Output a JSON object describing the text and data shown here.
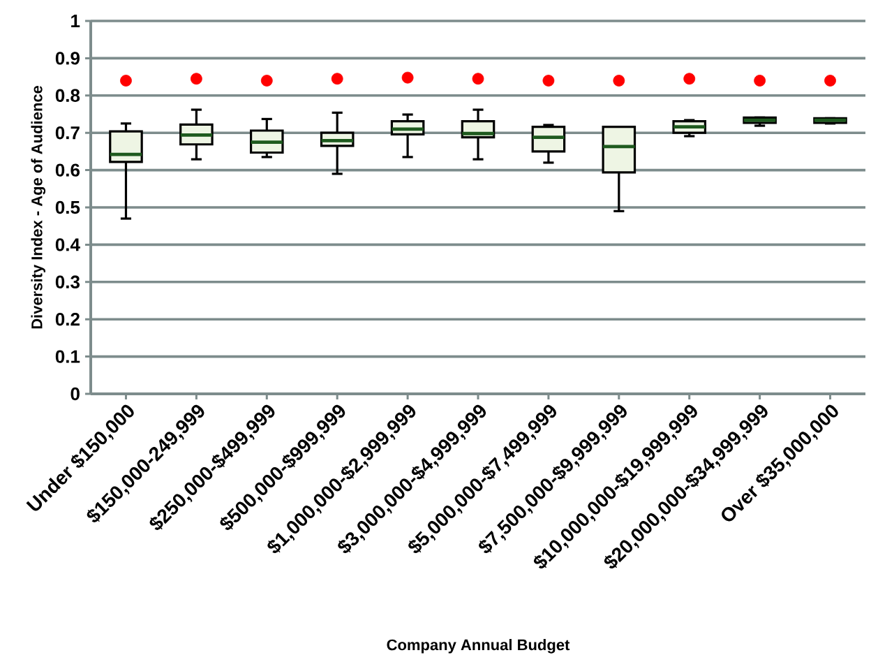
{
  "chart_data": {
    "type": "box",
    "xlabel": "Company Annual Budget",
    "ylabel": "Diversity Index - Age of Audience",
    "categories": [
      "Under $150,000",
      "$150,000-249,999",
      "$250,000-$499,999",
      "$500,000-$999,999",
      "$1,000,000-$2,999,999",
      "$3,000,000-$4,999,999",
      "$5,000,000-$7,499,999",
      "$7,500,000-$9,999,999",
      "$10,000,000-$19,999,999",
      "$20,000,000-$34,999,999",
      "Over $35,000,000"
    ],
    "series": [
      {
        "color": "#eef5e4",
        "boxes": [
          {
            "low": 0.47,
            "q1": 0.622,
            "median": 0.642,
            "q3": 0.704,
            "high": 0.725
          },
          {
            "low": 0.629,
            "q1": 0.669,
            "median": 0.694,
            "q3": 0.722,
            "high": 0.762
          },
          {
            "low": 0.635,
            "q1": 0.647,
            "median": 0.675,
            "q3": 0.706,
            "high": 0.737
          },
          {
            "low": 0.59,
            "q1": 0.665,
            "median": 0.679,
            "q3": 0.7,
            "high": 0.754
          },
          {
            "low": 0.635,
            "q1": 0.696,
            "median": 0.71,
            "q3": 0.731,
            "high": 0.749
          },
          {
            "low": 0.629,
            "q1": 0.688,
            "median": 0.698,
            "q3": 0.731,
            "high": 0.762
          },
          {
            "low": 0.62,
            "q1": 0.65,
            "median": 0.688,
            "q3": 0.716,
            "high": 0.721
          },
          {
            "low": 0.49,
            "q1": 0.594,
            "median": 0.663,
            "q3": 0.716,
            "high": 0.716
          },
          {
            "low": 0.691,
            "q1": 0.7,
            "median": 0.716,
            "q3": 0.731,
            "high": 0.734
          },
          {
            "low": 0.719,
            "q1": 0.727,
            "median": 0.734,
            "q3": 0.741,
            "high": 0.741
          },
          {
            "low": 0.725,
            "q1": 0.727,
            "median": 0.734,
            "q3": 0.739,
            "high": 0.739
          }
        ]
      },
      {
        "type": "scatter",
        "color": "#ff0000",
        "marker": "circle",
        "x": [
          "Under $150,000",
          "$150,000-249,999",
          "$250,000-$499,999",
          "$500,000-$999,999",
          "$1,000,000-$2,999,999",
          "$3,000,000-$4,999,999",
          "$5,000,000-$7,499,999",
          "$7,500,000-$9,999,999",
          "$10,000,000-$19,999,999",
          "$20,000,000-$34,999,999",
          "Over $35,000,000"
        ],
        "values": [
          0.84,
          0.845,
          0.84,
          0.845,
          0.848,
          0.845,
          0.84,
          0.84,
          0.845,
          0.84,
          0.84
        ]
      }
    ],
    "ylim": [
      0,
      1
    ],
    "yticks": [
      0,
      0.1,
      0.2,
      0.3,
      0.4,
      0.5,
      0.6,
      0.7,
      0.8,
      0.9,
      1
    ],
    "grid": "y"
  }
}
